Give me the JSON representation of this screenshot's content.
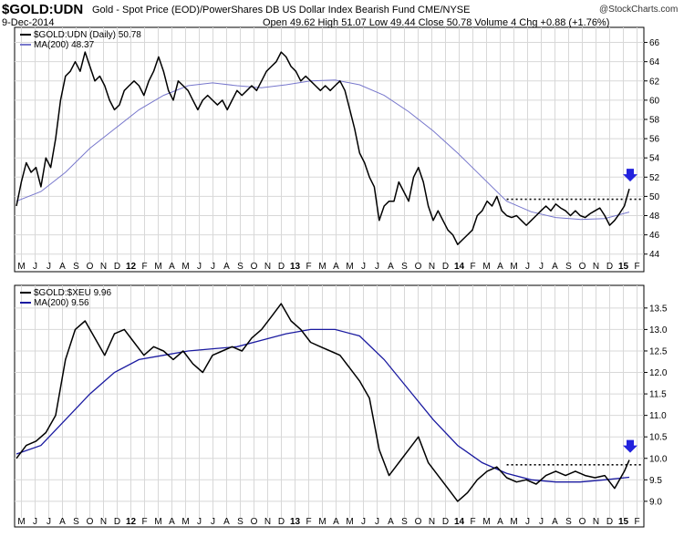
{
  "header": {
    "symbol": "$GOLD:UDN",
    "description": "Gold - Spot Price (EOD)/PowerShares DB US Dollar Index Bearish Fund  CME/NYSE",
    "date": "9-Dec-2014",
    "ohlc": "Open 49.62  High 51.07  Low 49.44  Close 50.78  Volume 4  Chg +0.88 (+1.76%)",
    "brand": "@StockCharts.com"
  },
  "colors": {
    "price_line": "#000000",
    "ma_line_top": "#7777cc",
    "ma_line_bottom": "#1a1aa0",
    "arrow": "#2222dd",
    "grid": "#d8d8d8"
  },
  "x_axis": {
    "labels": [
      "M",
      "J",
      "J",
      "A",
      "S",
      "O",
      "N",
      "D",
      "12",
      "F",
      "M",
      "A",
      "M",
      "J",
      "J",
      "A",
      "S",
      "O",
      "N",
      "D",
      "13",
      "F",
      "M",
      "A",
      "M",
      "J",
      "J",
      "A",
      "S",
      "O",
      "N",
      "D",
      "14",
      "F",
      "M",
      "A",
      "M",
      "J",
      "J",
      "A",
      "S",
      "O",
      "N",
      "D",
      "15",
      "F"
    ],
    "bold_labels": [
      "12",
      "13",
      "14",
      "15"
    ]
  },
  "chart_data": [
    {
      "type": "line",
      "legend": [
        {
          "label": "$GOLD:UDN (Daily) 50.78"
        },
        {
          "label": "MA(200) 48.37"
        }
      ],
      "y_ticks": [
        44,
        46,
        48,
        50,
        52,
        54,
        56,
        58,
        60,
        62,
        64,
        66
      ],
      "ylim": [
        43.5,
        67
      ],
      "grid": true,
      "resistance_level": 49.7,
      "series": [
        {
          "name": "$GOLD:UDN (Daily)",
          "points": [
            [
              0,
              49.0
            ],
            [
              1,
              51.5
            ],
            [
              2,
              53.5
            ],
            [
              3,
              52.5
            ],
            [
              4,
              53.0
            ],
            [
              5,
              51.0
            ],
            [
              6,
              54.0
            ],
            [
              7,
              53.0
            ],
            [
              8,
              56.0
            ],
            [
              9,
              60.0
            ],
            [
              10,
              62.5
            ],
            [
              11,
              63.0
            ],
            [
              12,
              64.0
            ],
            [
              13,
              63.0
            ],
            [
              14,
              65.0
            ],
            [
              15,
              63.5
            ],
            [
              16,
              62.0
            ],
            [
              17,
              62.5
            ],
            [
              18,
              61.5
            ],
            [
              19,
              60.0
            ],
            [
              20,
              59.0
            ],
            [
              21,
              59.5
            ],
            [
              22,
              61.0
            ],
            [
              23,
              61.5
            ],
            [
              24,
              62.0
            ],
            [
              25,
              61.5
            ],
            [
              26,
              60.5
            ],
            [
              27,
              62.0
            ],
            [
              28,
              63.0
            ],
            [
              29,
              64.5
            ],
            [
              30,
              63.0
            ],
            [
              31,
              61.0
            ],
            [
              32,
              60.0
            ],
            [
              33,
              62.0
            ],
            [
              34,
              61.5
            ],
            [
              35,
              61.0
            ],
            [
              36,
              60.0
            ],
            [
              37,
              59.0
            ],
            [
              38,
              60.0
            ],
            [
              39,
              60.5
            ],
            [
              40,
              60.0
            ],
            [
              41,
              59.5
            ],
            [
              42,
              60.0
            ],
            [
              43,
              59.0
            ],
            [
              44,
              60.0
            ],
            [
              45,
              61.0
            ],
            [
              46,
              60.5
            ],
            [
              47,
              61.0
            ],
            [
              48,
              61.5
            ],
            [
              49,
              61.0
            ],
            [
              50,
              62.0
            ],
            [
              51,
              63.0
            ],
            [
              52,
              63.5
            ],
            [
              53,
              64.0
            ],
            [
              54,
              65.0
            ],
            [
              55,
              64.5
            ],
            [
              56,
              63.5
            ],
            [
              57,
              63.0
            ],
            [
              58,
              62.0
            ],
            [
              59,
              62.5
            ],
            [
              60,
              62.0
            ],
            [
              61,
              61.5
            ],
            [
              62,
              61.0
            ],
            [
              63,
              61.5
            ],
            [
              64,
              61.0
            ],
            [
              65,
              61.5
            ],
            [
              66,
              62.0
            ],
            [
              67,
              61.0
            ],
            [
              68,
              59.0
            ],
            [
              69,
              57.0
            ],
            [
              70,
              54.5
            ],
            [
              71,
              53.5
            ],
            [
              72,
              52.0
            ],
            [
              73,
              51.0
            ],
            [
              74,
              47.5
            ],
            [
              75,
              49.0
            ],
            [
              76,
              49.5
            ],
            [
              77,
              49.5
            ],
            [
              78,
              51.5
            ],
            [
              79,
              50.5
            ],
            [
              80,
              49.5
            ],
            [
              81,
              52.0
            ],
            [
              82,
              53.0
            ],
            [
              83,
              51.5
            ],
            [
              84,
              49.0
            ],
            [
              85,
              47.5
            ],
            [
              86,
              48.5
            ],
            [
              87,
              47.5
            ],
            [
              88,
              46.5
            ],
            [
              89,
              46.0
            ],
            [
              90,
              45.0
            ],
            [
              91,
              45.5
            ],
            [
              92,
              46.0
            ],
            [
              93,
              46.5
            ],
            [
              94,
              48.0
            ],
            [
              95,
              48.5
            ],
            [
              96,
              49.5
            ],
            [
              97,
              49.0
            ],
            [
              98,
              50.0
            ],
            [
              99,
              48.5
            ],
            [
              100,
              48.0
            ],
            [
              101,
              47.8
            ],
            [
              102,
              48.0
            ],
            [
              103,
              47.5
            ],
            [
              104,
              47.0
            ],
            [
              105,
              47.5
            ],
            [
              106,
              48.0
            ],
            [
              107,
              48.5
            ],
            [
              108,
              49.0
            ],
            [
              109,
              48.5
            ],
            [
              110,
              49.2
            ],
            [
              111,
              48.8
            ],
            [
              112,
              48.5
            ],
            [
              113,
              48.0
            ],
            [
              114,
              48.5
            ],
            [
              115,
              48.0
            ],
            [
              116,
              47.8
            ],
            [
              117,
              48.2
            ],
            [
              118,
              48.5
            ],
            [
              119,
              48.8
            ],
            [
              120,
              48.0
            ],
            [
              121,
              47.0
            ],
            [
              122,
              47.5
            ],
            [
              123,
              48.2
            ],
            [
              124,
              49.0
            ],
            [
              125,
              50.78
            ]
          ]
        },
        {
          "name": "MA(200)",
          "points": [
            [
              0,
              49.5
            ],
            [
              5,
              50.5
            ],
            [
              10,
              52.5
            ],
            [
              15,
              55.0
            ],
            [
              20,
              57.0
            ],
            [
              25,
              59.0
            ],
            [
              30,
              60.5
            ],
            [
              35,
              61.5
            ],
            [
              40,
              61.8
            ],
            [
              45,
              61.5
            ],
            [
              50,
              61.3
            ],
            [
              55,
              61.6
            ],
            [
              60,
              62.0
            ],
            [
              65,
              62.1
            ],
            [
              70,
              61.6
            ],
            [
              75,
              60.5
            ],
            [
              80,
              58.8
            ],
            [
              85,
              56.8
            ],
            [
              90,
              54.5
            ],
            [
              95,
              52.0
            ],
            [
              100,
              49.5
            ],
            [
              105,
              48.4
            ],
            [
              110,
              47.8
            ],
            [
              115,
              47.6
            ],
            [
              120,
              47.7
            ],
            [
              125,
              48.37
            ]
          ]
        }
      ]
    },
    {
      "type": "line",
      "legend": [
        {
          "label": "$GOLD:$XEU 9.96"
        },
        {
          "label": "MA(200) 9.56"
        }
      ],
      "y_ticks": [
        9.0,
        9.5,
        10.0,
        10.5,
        11.0,
        11.5,
        12.0,
        12.5,
        13.0,
        13.5
      ],
      "ylim": [
        8.7,
        13.9
      ],
      "grid": true,
      "resistance_level": 9.85,
      "series": [
        {
          "name": "$GOLD:$XEU",
          "points": [
            [
              0,
              10.0
            ],
            [
              2,
              10.3
            ],
            [
              4,
              10.4
            ],
            [
              6,
              10.6
            ],
            [
              8,
              11.0
            ],
            [
              10,
              12.3
            ],
            [
              12,
              13.0
            ],
            [
              14,
              13.2
            ],
            [
              16,
              12.8
            ],
            [
              18,
              12.4
            ],
            [
              20,
              12.9
            ],
            [
              22,
              13.0
            ],
            [
              24,
              12.7
            ],
            [
              26,
              12.4
            ],
            [
              28,
              12.6
            ],
            [
              30,
              12.5
            ],
            [
              32,
              12.3
            ],
            [
              34,
              12.5
            ],
            [
              36,
              12.2
            ],
            [
              38,
              12.0
            ],
            [
              40,
              12.4
            ],
            [
              42,
              12.5
            ],
            [
              44,
              12.6
            ],
            [
              46,
              12.5
            ],
            [
              48,
              12.8
            ],
            [
              50,
              13.0
            ],
            [
              52,
              13.3
            ],
            [
              54,
              13.6
            ],
            [
              56,
              13.2
            ],
            [
              58,
              13.0
            ],
            [
              60,
              12.7
            ],
            [
              62,
              12.6
            ],
            [
              64,
              12.5
            ],
            [
              66,
              12.4
            ],
            [
              68,
              12.1
            ],
            [
              70,
              11.8
            ],
            [
              72,
              11.4
            ],
            [
              74,
              10.2
            ],
            [
              76,
              9.6
            ],
            [
              78,
              9.9
            ],
            [
              80,
              10.2
            ],
            [
              82,
              10.5
            ],
            [
              84,
              9.9
            ],
            [
              86,
              9.6
            ],
            [
              88,
              9.3
            ],
            [
              90,
              9.0
            ],
            [
              92,
              9.2
            ],
            [
              94,
              9.5
            ],
            [
              96,
              9.7
            ],
            [
              98,
              9.8
            ],
            [
              100,
              9.55
            ],
            [
              102,
              9.45
            ],
            [
              104,
              9.5
            ],
            [
              106,
              9.4
            ],
            [
              108,
              9.6
            ],
            [
              110,
              9.7
            ],
            [
              112,
              9.6
            ],
            [
              114,
              9.7
            ],
            [
              116,
              9.6
            ],
            [
              118,
              9.55
            ],
            [
              120,
              9.6
            ],
            [
              122,
              9.3
            ],
            [
              124,
              9.7
            ],
            [
              125,
              9.96
            ]
          ]
        },
        {
          "name": "MA(200)",
          "points": [
            [
              0,
              10.1
            ],
            [
              5,
              10.3
            ],
            [
              10,
              10.9
            ],
            [
              15,
              11.5
            ],
            [
              20,
              12.0
            ],
            [
              25,
              12.3
            ],
            [
              30,
              12.4
            ],
            [
              35,
              12.5
            ],
            [
              40,
              12.55
            ],
            [
              45,
              12.6
            ],
            [
              50,
              12.75
            ],
            [
              55,
              12.9
            ],
            [
              60,
              13.0
            ],
            [
              65,
              13.0
            ],
            [
              70,
              12.85
            ],
            [
              75,
              12.3
            ],
            [
              80,
              11.6
            ],
            [
              85,
              10.9
            ],
            [
              90,
              10.3
            ],
            [
              95,
              9.9
            ],
            [
              100,
              9.65
            ],
            [
              105,
              9.5
            ],
            [
              110,
              9.45
            ],
            [
              115,
              9.45
            ],
            [
              120,
              9.5
            ],
            [
              125,
              9.56
            ]
          ]
        }
      ]
    }
  ]
}
